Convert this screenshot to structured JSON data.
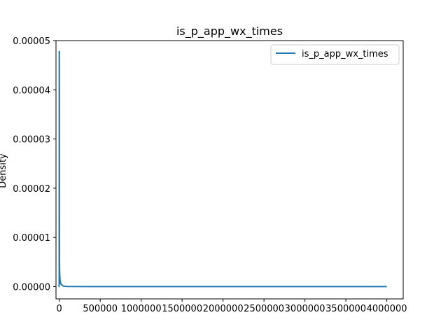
{
  "chart_data": {
    "type": "line",
    "title": "is_p_app_wx_times",
    "xlabel": "",
    "ylabel": "Density",
    "xlim": [
      -40000,
      4200000
    ],
    "ylim": [
      -2.5e-06,
      5e-05
    ],
    "x_ticks": [
      0,
      500000,
      1000000,
      1500000,
      2000000,
      2500000,
      3000000,
      3500000,
      4000000
    ],
    "x_tick_labels": [
      "0",
      "500000",
      "1000000",
      "1500000",
      "2000000",
      "2500000",
      "3000000",
      "3500000",
      "4000000"
    ],
    "y_ticks": [
      0,
      1e-05,
      2e-05,
      3e-05,
      4e-05,
      5e-05
    ],
    "y_tick_labels": [
      "0.00000",
      "0.00001",
      "0.00002",
      "0.00003",
      "0.00004",
      "0.00005"
    ],
    "grid": false,
    "legend_position": "top-right",
    "series": [
      {
        "name": "is_p_app_wx_times",
        "color": "#1f77b4",
        "x": [
          -10000,
          -3000,
          -1000,
          0,
          1000,
          2000,
          3000,
          4000,
          6000,
          10000,
          20000,
          50000,
          100000,
          500000,
          1000000,
          2000000,
          3000000,
          4000000
        ],
        "y": [
          0,
          0,
          5e-07,
          4.78e-05,
          4.78e-05,
          1e-05,
          5e-06,
          3.5e-06,
          2.2e-06,
          1.2e-06,
          5e-07,
          1e-07,
          2e-08,
          0,
          0,
          0,
          0,
          0
        ]
      }
    ]
  }
}
